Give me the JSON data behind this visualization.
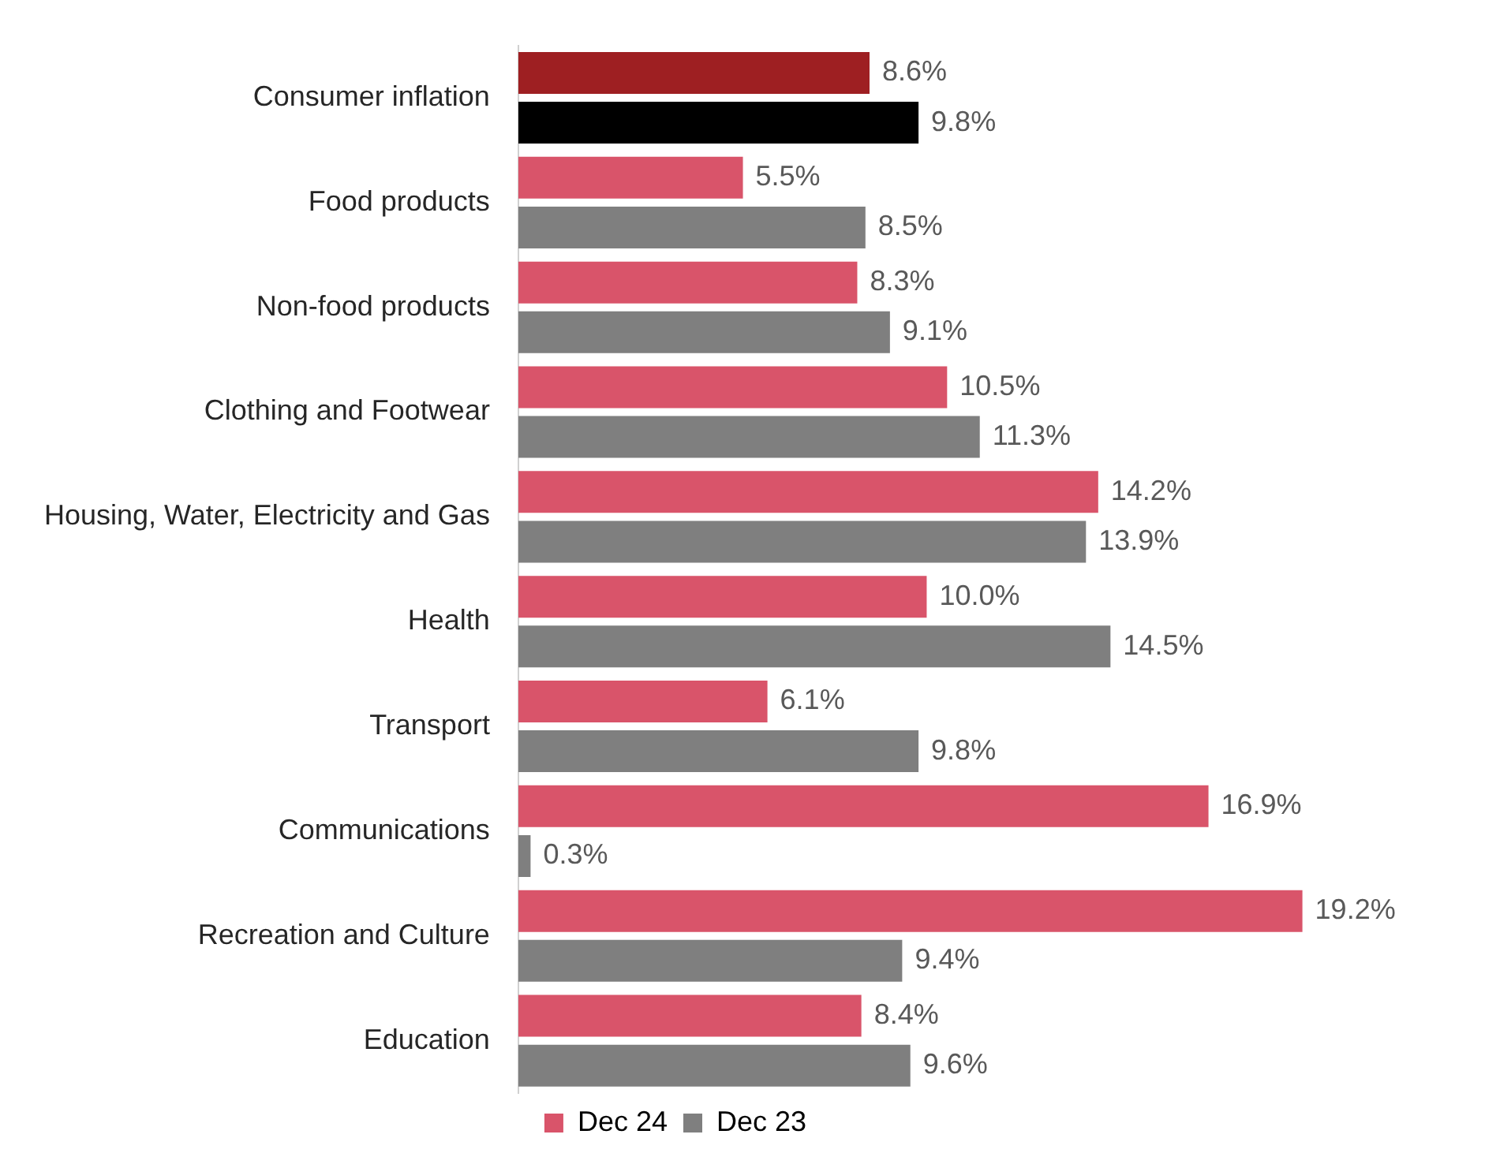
{
  "chart_data": {
    "type": "bar",
    "orientation": "horizontal",
    "data_labels": true,
    "grid": false,
    "legend": "bottom",
    "categories": [
      "Consumer inflation",
      "Food products",
      "Non-food products",
      "Clothing and Footwear",
      "Housing, Water, Electricity and Gas",
      "Health",
      "Transport",
      "Communications",
      "Recreation and Culture",
      "Education"
    ],
    "series": [
      {
        "name": "Dec 24",
        "color": "#d9546a",
        "colors": [
          "#9e1f22",
          "#d9546a",
          "#d9546a",
          "#d9546a",
          "#d9546a",
          "#d9546a",
          "#d9546a",
          "#d9546a",
          "#d9546a",
          "#d9546a"
        ],
        "values": [
          8.6,
          5.5,
          8.3,
          10.5,
          14.2,
          10.0,
          6.1,
          16.9,
          19.2,
          8.4
        ],
        "value_labels": [
          "8.6%",
          "5.5%",
          "8.3%",
          "10.5%",
          "14.2%",
          "10.0%",
          "6.1%",
          "16.9%",
          "19.2%",
          "8.4%"
        ]
      },
      {
        "name": "Dec 23",
        "color": "#7f7f7f",
        "colors": [
          "#000000",
          "#7f7f7f",
          "#7f7f7f",
          "#7f7f7f",
          "#7f7f7f",
          "#7f7f7f",
          "#7f7f7f",
          "#7f7f7f",
          "#7f7f7f",
          "#7f7f7f"
        ],
        "values": [
          9.8,
          8.5,
          9.1,
          11.3,
          13.9,
          14.5,
          9.8,
          0.3,
          9.4,
          9.6
        ],
        "value_labels": [
          "9.8%",
          "8.5%",
          "9.1%",
          "11.3%",
          "13.9%",
          "14.5%",
          "9.8%",
          "0.3%",
          "9.4%",
          "9.6%"
        ]
      }
    ]
  }
}
